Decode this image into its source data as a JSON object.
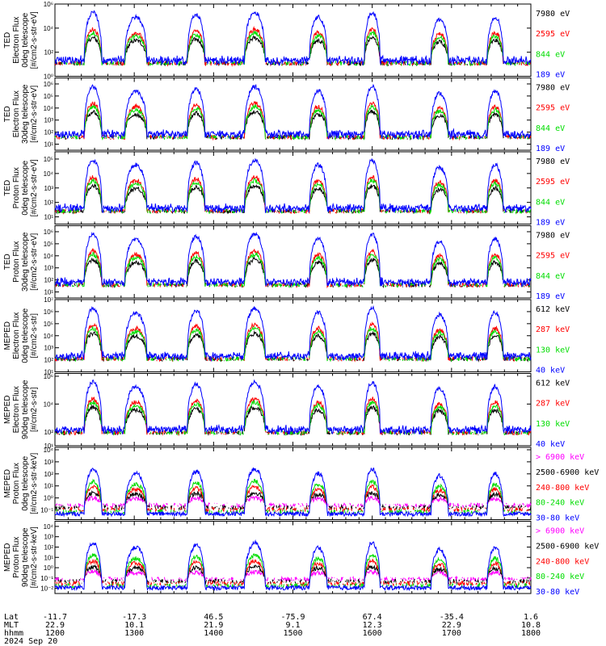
{
  "chart_data": [
    {
      "type": "line",
      "ylabel": [
        "TED",
        "Electron Flux",
        "0deg telescope",
        "[#/cm2-s-str-eV]"
      ],
      "y_scale": "log",
      "y_ticks": [
        {
          "exp": 0,
          "label": "10⁰"
        },
        {
          "exp": 2,
          "label": "10²"
        },
        {
          "exp": 4,
          "label": "10⁴"
        },
        {
          "exp": 6,
          "label": "10⁶"
        }
      ],
      "ylim_exp": [
        0,
        6
      ],
      "series": [
        {
          "name": "7980 eV",
          "color": "#000000"
        },
        {
          "name": "2595 eV",
          "color": "#ff0000"
        },
        {
          "name": "844 eV",
          "color": "#00dd00"
        },
        {
          "name": "189 eV",
          "color": "#0000ff"
        }
      ]
    },
    {
      "type": "line",
      "ylabel": [
        "TED",
        "Electron Flux",
        "30deg telescope",
        "[#/cm2-s-str-eV]"
      ],
      "y_scale": "log",
      "y_ticks": [
        {
          "exp": 1,
          "label": "10¹"
        },
        {
          "exp": 2,
          "label": "10²"
        },
        {
          "exp": 3,
          "label": "10³"
        },
        {
          "exp": 4,
          "label": "10⁴"
        },
        {
          "exp": 5,
          "label": "10⁵"
        },
        {
          "exp": 6,
          "label": "10⁶"
        }
      ],
      "ylim_exp": [
        0.5,
        6.5
      ],
      "series": [
        {
          "name": "7980 eV",
          "color": "#000000"
        },
        {
          "name": "2595 eV",
          "color": "#ff0000"
        },
        {
          "name": "844 eV",
          "color": "#00dd00"
        },
        {
          "name": "189 eV",
          "color": "#0000ff"
        }
      ]
    },
    {
      "type": "line",
      "ylabel": [
        "TED",
        "Proton Flux",
        "0deg telescope",
        "[#/cm2-s-str-eV]"
      ],
      "y_scale": "log",
      "y_ticks": [
        {
          "exp": 1,
          "label": "10¹"
        },
        {
          "exp": 2,
          "label": "10²"
        },
        {
          "exp": 3,
          "label": "10³"
        },
        {
          "exp": 4,
          "label": "10⁴"
        },
        {
          "exp": 5,
          "label": "10⁵"
        }
      ],
      "ylim_exp": [
        0.5,
        5.5
      ],
      "series": [
        {
          "name": "7980 eV",
          "color": "#000000"
        },
        {
          "name": "2595 eV",
          "color": "#ff0000"
        },
        {
          "name": "844 eV",
          "color": "#00dd00"
        },
        {
          "name": "189 eV",
          "color": "#0000ff"
        }
      ]
    },
    {
      "type": "line",
      "ylabel": [
        "TED",
        "Proton Flux",
        "30deg telescope",
        "[#/cm2-s-str-eV]"
      ],
      "y_scale": "log",
      "y_ticks": [
        {
          "exp": 1,
          "label": "10¹"
        },
        {
          "exp": 2,
          "label": "10²"
        },
        {
          "exp": 3,
          "label": "10³"
        },
        {
          "exp": 4,
          "label": "10⁴"
        },
        {
          "exp": 5,
          "label": "10⁵"
        },
        {
          "exp": 6,
          "label": "10⁶"
        }
      ],
      "ylim_exp": [
        0.5,
        6.5
      ],
      "series": [
        {
          "name": "7980 eV",
          "color": "#000000"
        },
        {
          "name": "2595 eV",
          "color": "#ff0000"
        },
        {
          "name": "844 eV",
          "color": "#00dd00"
        },
        {
          "name": "189 eV",
          "color": "#0000ff"
        }
      ]
    },
    {
      "type": "line",
      "ylabel": [
        "MEPED",
        "Electron Flux",
        "0deg telescope",
        "[#/cm2-s-str]"
      ],
      "y_scale": "log",
      "y_ticks": [
        {
          "exp": 1,
          "label": "10¹"
        },
        {
          "exp": 2,
          "label": "10²"
        },
        {
          "exp": 3,
          "label": "10³"
        },
        {
          "exp": 4,
          "label": "10⁴"
        },
        {
          "exp": 5,
          "label": "10⁵"
        },
        {
          "exp": 6,
          "label": "10⁶"
        },
        {
          "exp": 7,
          "label": "10⁷"
        }
      ],
      "ylim_exp": [
        1,
        7
      ],
      "series": [
        {
          "name": "612 keV",
          "color": "#000000"
        },
        {
          "name": "287 keV",
          "color": "#ff0000"
        },
        {
          "name": "130 keV",
          "color": "#00dd00"
        },
        {
          "name": "40 keV",
          "color": "#0000ff"
        }
      ]
    },
    {
      "type": "line",
      "ylabel": [
        "MEPED",
        "Electron Flux",
        "90deg telescope",
        "[#/cm2-s-str]"
      ],
      "y_scale": "log",
      "y_ticks": [
        {
          "exp": 1,
          "label": "10¹"
        },
        {
          "exp": 2,
          "label": "10²"
        },
        {
          "exp": 4,
          "label": "10⁴"
        },
        {
          "exp": 6,
          "label": "10⁶"
        }
      ],
      "ylim_exp": [
        1,
        6.2
      ],
      "series": [
        {
          "name": "612 keV",
          "color": "#000000"
        },
        {
          "name": "287 keV",
          "color": "#ff0000"
        },
        {
          "name": "130 keV",
          "color": "#00dd00"
        },
        {
          "name": "40 keV",
          "color": "#0000ff"
        }
      ]
    },
    {
      "type": "line",
      "ylabel": [
        "MEPED",
        "Proton Flux",
        "0deg telescope",
        "[#/cm2-s-str-keV]"
      ],
      "y_scale": "log",
      "y_ticks": [
        {
          "exp": -1,
          "label": "10⁻¹"
        },
        {
          "exp": 0,
          "label": "10⁰"
        },
        {
          "exp": 1,
          "label": "10¹"
        },
        {
          "exp": 2,
          "label": "10²"
        },
        {
          "exp": 3,
          "label": "10³"
        },
        {
          "exp": 4,
          "label": "10⁴"
        }
      ],
      "ylim_exp": [
        -1.8,
        4.2
      ],
      "series": [
        {
          "name": "> 6900 keV",
          "color": "#ff00ff"
        },
        {
          "name": "2500-6900 keV",
          "color": "#000000"
        },
        {
          "name": "240-800 keV",
          "color": "#ff0000"
        },
        {
          "name": "80-240 keV",
          "color": "#00dd00"
        },
        {
          "name": "30-80 keV",
          "color": "#0000ff"
        }
      ]
    },
    {
      "type": "line",
      "ylabel": [
        "MEPED",
        "Proton Flux",
        "90deg telescope",
        "[#/cm2-s-str-keV]"
      ],
      "y_scale": "log",
      "y_ticks": [
        {
          "exp": -2,
          "label": "10⁻²"
        },
        {
          "exp": -1,
          "label": "10⁻¹"
        },
        {
          "exp": 0,
          "label": "10⁰"
        },
        {
          "exp": 1,
          "label": "10¹"
        },
        {
          "exp": 2,
          "label": "10²"
        },
        {
          "exp": 3,
          "label": "10³"
        },
        {
          "exp": 4,
          "label": "10⁴"
        }
      ],
      "ylim_exp": [
        -2.5,
        4.5
      ],
      "series": [
        {
          "name": "> 6900 keV",
          "color": "#ff00ff"
        },
        {
          "name": "2500-6900 keV",
          "color": "#000000"
        },
        {
          "name": "240-800 keV",
          "color": "#ff0000"
        },
        {
          "name": "80-240 keV",
          "color": "#00dd00"
        },
        {
          "name": "30-80 keV",
          "color": "#0000ff"
        }
      ]
    }
  ],
  "x_axis": {
    "row_labels": [
      "Lat",
      "MLT",
      "hhmm"
    ],
    "date": "2024 Sep 20",
    "ticks": [
      {
        "hhmm": "1200",
        "lat": "-11.7",
        "mlt": "22.9"
      },
      {
        "hhmm": "1300",
        "lat": "-17.3",
        "mlt": "10.1"
      },
      {
        "hhmm": "1400",
        "lat": "46.5",
        "mlt": "21.9"
      },
      {
        "hhmm": "1500",
        "lat": "-75.9",
        "mlt": "9.1"
      },
      {
        "hhmm": "1600",
        "lat": "67.4",
        "mlt": "12.3"
      },
      {
        "hhmm": "1700",
        "lat": "-35.4",
        "mlt": "22.9"
      },
      {
        "hhmm": "1800",
        "lat": "1.6",
        "mlt": "10.8"
      }
    ],
    "minor_per_major": 6
  },
  "passes": [
    {
      "center_hour": 12.48,
      "half_width_hours": 0.11,
      "peak": 1.0
    },
    {
      "center_hour": 13.02,
      "half_width_hours": 0.14,
      "peak": 0.9
    },
    {
      "center_hour": 13.78,
      "half_width_hours": 0.11,
      "peak": 0.95
    },
    {
      "center_hour": 14.52,
      "half_width_hours": 0.13,
      "peak": 1.0
    },
    {
      "center_hour": 15.32,
      "half_width_hours": 0.11,
      "peak": 0.9
    },
    {
      "center_hour": 16.0,
      "half_width_hours": 0.1,
      "peak": 1.0
    },
    {
      "center_hour": 16.85,
      "half_width_hours": 0.11,
      "peak": 0.85
    },
    {
      "center_hour": 17.55,
      "half_width_hours": 0.1,
      "peak": 0.9
    }
  ]
}
